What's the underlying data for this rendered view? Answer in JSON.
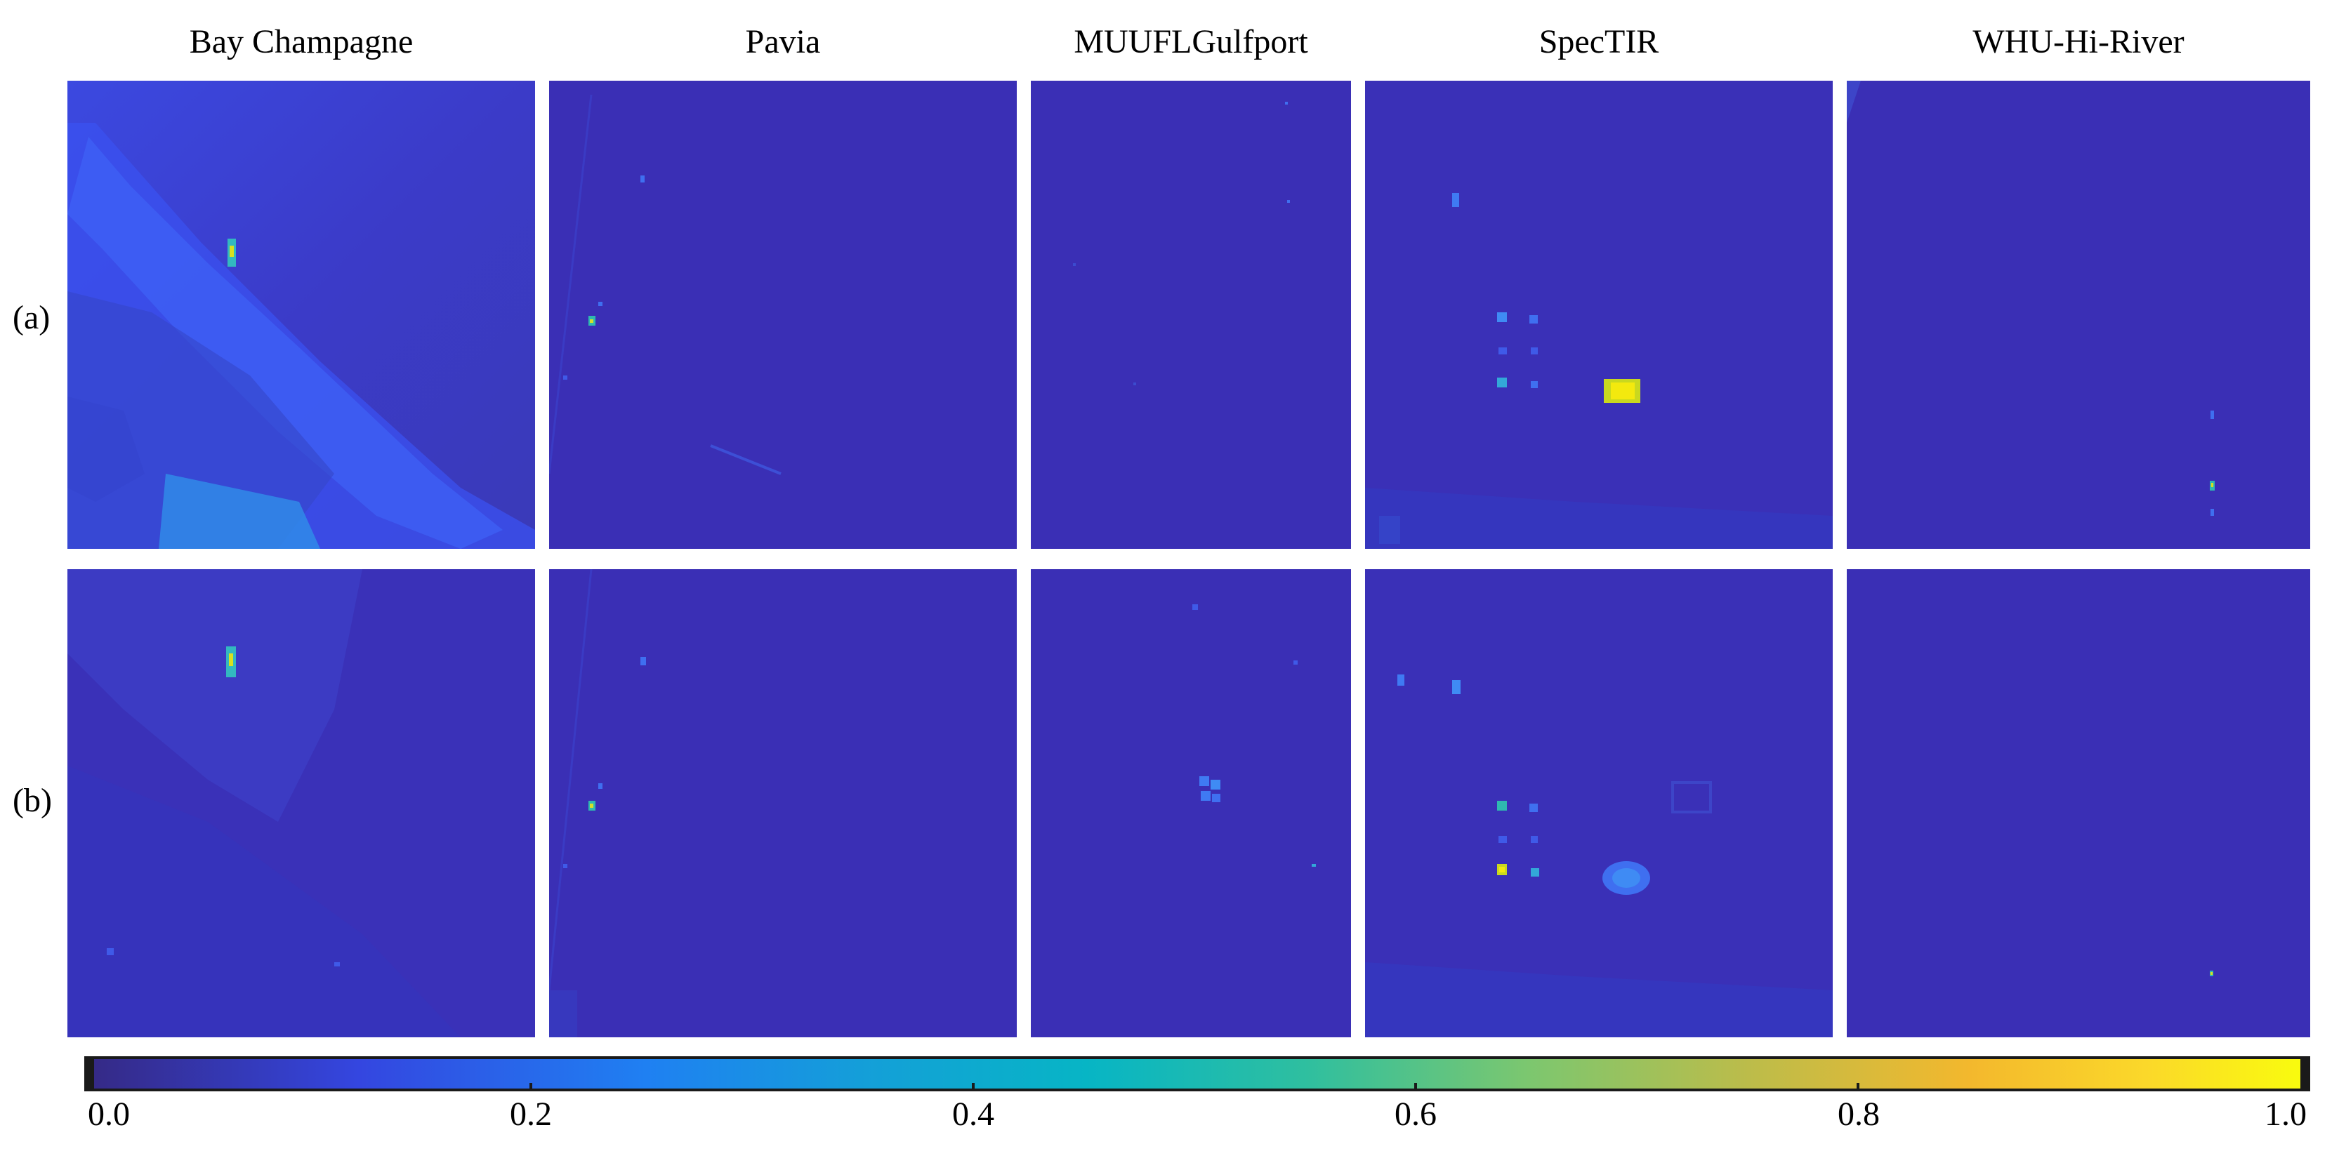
{
  "columns": [
    "Bay Champagne",
    "Pavia",
    "MUUFLGulfport",
    "SpecTIR",
    "WHU-Hi-River"
  ],
  "rows": [
    "(a)",
    "(b)"
  ],
  "colorbar": {
    "ticks": [
      "0.0",
      "0.2",
      "0.4",
      "0.6",
      "0.8",
      "1.0"
    ],
    "tick_values": [
      0.0,
      0.2,
      0.4,
      0.6,
      0.8,
      1.0
    ],
    "range": [
      0.0,
      1.0
    ],
    "colormap": "parula"
  },
  "colors": {
    "background_low": "#3b2fb6",
    "mid": "#2aa9d8",
    "high": "#f9fb0e"
  }
}
